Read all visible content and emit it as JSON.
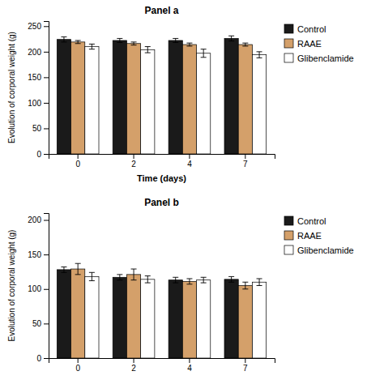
{
  "chart_data": [
    {
      "type": "bar",
      "title": "Panel a",
      "categories": [
        "0",
        "2",
        "4",
        "7"
      ],
      "series": [
        {
          "name": "Control",
          "color": "#1a1a1a",
          "values": [
            224,
            222,
            222,
            226
          ],
          "errors": [
            5,
            4,
            4,
            5
          ]
        },
        {
          "name": "RAAE",
          "color": "#d4a06a",
          "values": [
            219,
            216,
            214,
            214
          ],
          "errors": [
            3,
            3,
            3,
            3
          ]
        },
        {
          "name": "Glibenclamide",
          "color": "#ffffff",
          "values": [
            210,
            204,
            197,
            194
          ],
          "errors": [
            5,
            6,
            8,
            6
          ]
        }
      ],
      "ylabel": "Evolution of corporal weight (g)",
      "xlabel": "Time (days)",
      "ylim": [
        0,
        260
      ],
      "yticks": [
        0,
        50,
        100,
        150,
        200,
        250
      ],
      "legend": "right"
    },
    {
      "type": "bar",
      "title": "Panel b",
      "categories": [
        "0",
        "2",
        "4",
        "7"
      ],
      "series": [
        {
          "name": "Control",
          "color": "#1a1a1a",
          "values": [
            128,
            117,
            113,
            114
          ],
          "errors": [
            4,
            4,
            4,
            4
          ]
        },
        {
          "name": "RAAE",
          "color": "#d4a06a",
          "values": [
            129,
            121,
            111,
            105
          ],
          "errors": [
            8,
            8,
            4,
            5
          ]
        },
        {
          "name": "Glibenclamide",
          "color": "#ffffff",
          "values": [
            118,
            114,
            113,
            110
          ],
          "errors": [
            6,
            5,
            4,
            5
          ]
        }
      ],
      "ylabel": "Evolution of corporal weight (g)",
      "ylim": [
        0,
        210
      ],
      "yticks": [
        0,
        50,
        100,
        150,
        200
      ],
      "legend": "right"
    }
  ]
}
